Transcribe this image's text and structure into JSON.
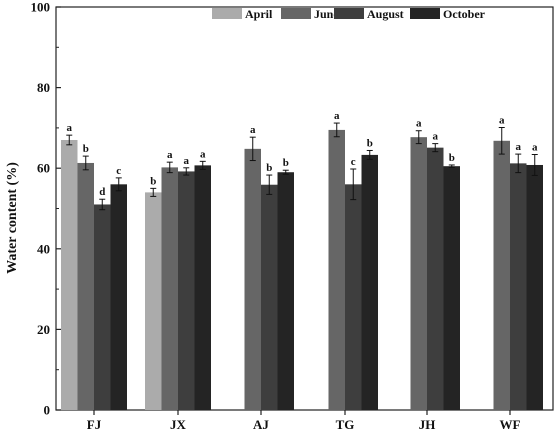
{
  "chart_data": {
    "type": "bar",
    "title": "",
    "xlabel": "",
    "ylabel": "Water content (%)",
    "ylim": [
      0,
      100
    ],
    "yticks": [
      0,
      20,
      40,
      60,
      80,
      100
    ],
    "grid": false,
    "legend_position": "top-right",
    "categories": [
      "FJ",
      "JX",
      "AJ",
      "TG",
      "JH",
      "WF"
    ],
    "series": [
      {
        "name": "April",
        "color": "#ababab",
        "values": [
          67.0,
          54.0,
          null,
          null,
          null,
          null
        ],
        "errors": [
          1.2,
          1.0,
          null,
          null,
          null,
          null
        ],
        "letters": [
          "a",
          "b",
          null,
          null,
          null,
          null
        ]
      },
      {
        "name": "June",
        "color": "#666666",
        "values": [
          61.3,
          60.2,
          64.8,
          69.5,
          67.7,
          66.8
        ],
        "errors": [
          1.7,
          1.3,
          2.9,
          1.7,
          1.6,
          3.3
        ],
        "letters": [
          "b",
          "a",
          "a",
          "a",
          "a",
          "a"
        ]
      },
      {
        "name": "August",
        "color": "#3e3e3e",
        "values": [
          51.0,
          59.2,
          55.9,
          56.0,
          65.1,
          61.2
        ],
        "errors": [
          1.3,
          0.9,
          2.4,
          3.8,
          1.0,
          2.3
        ],
        "letters": [
          "d",
          "a",
          "b",
          "c",
          "a",
          "a"
        ]
      },
      {
        "name": "October",
        "color": "#242424",
        "values": [
          56.0,
          60.7,
          59.0,
          63.3,
          60.5,
          60.8
        ],
        "errors": [
          1.6,
          1.0,
          0.5,
          1.1,
          0.3,
          2.6
        ],
        "letters": [
          "c",
          "a",
          "b",
          "b",
          "b",
          "a"
        ]
      }
    ]
  }
}
